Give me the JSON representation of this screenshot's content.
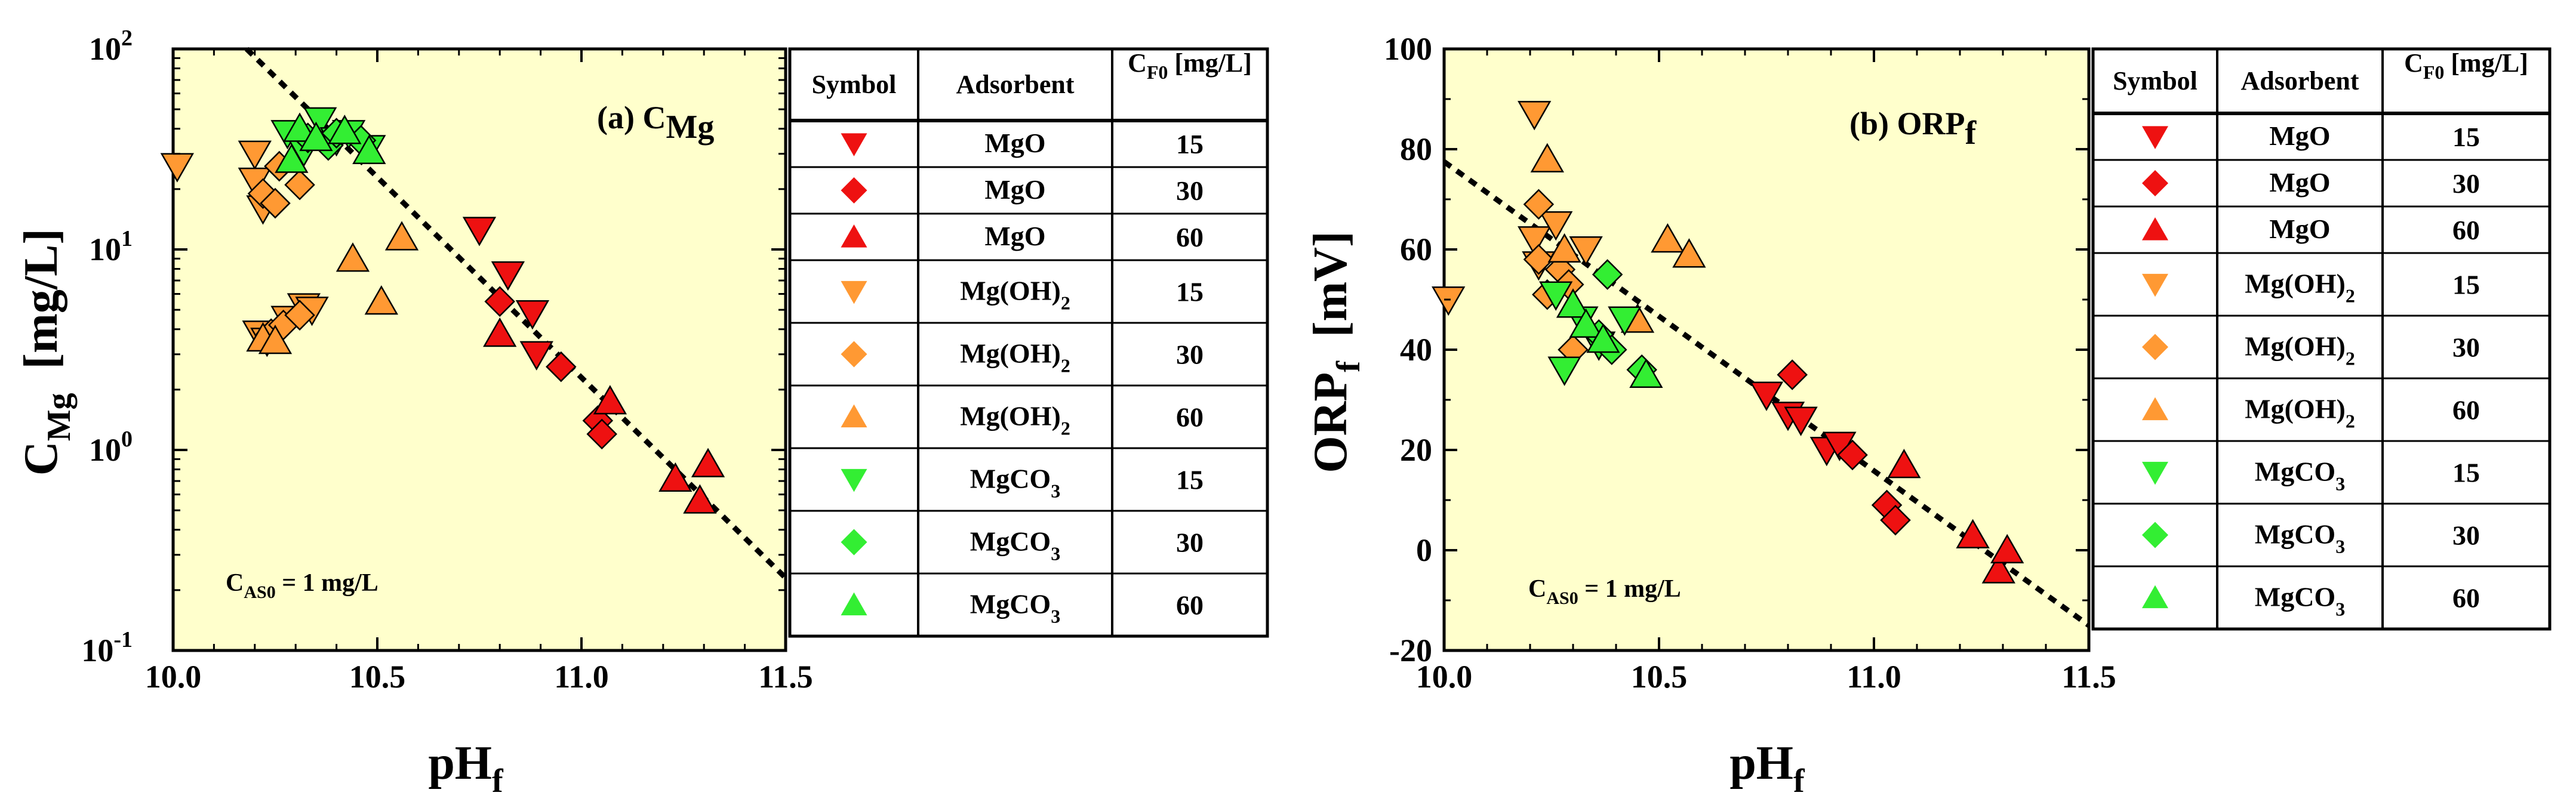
{
  "colors": {
    "plot_bg": "#ffffcc",
    "MgO": "#ee1111",
    "Mg(OH)2": "#ff9933",
    "MgCO3": "#33ee33",
    "outline": "#000000"
  },
  "legend": {
    "headers": {
      "symbol": "Symbol",
      "adsorbent": "Adsorbent",
      "cf0_main": "C",
      "cf0_sub": "F0",
      "cf0_unit": " [mg/L]"
    },
    "rows": [
      {
        "marker": "down",
        "color_key": "MgO",
        "ads_main": "MgO",
        "ads_sub": "",
        "cf0": "15"
      },
      {
        "marker": "diamond",
        "color_key": "MgO",
        "ads_main": "MgO",
        "ads_sub": "",
        "cf0": "30"
      },
      {
        "marker": "up",
        "color_key": "MgO",
        "ads_main": "MgO",
        "ads_sub": "",
        "cf0": "60"
      },
      {
        "marker": "down",
        "color_key": "Mg(OH)2",
        "ads_main": "Mg(OH)",
        "ads_sub": "2",
        "cf0": "15"
      },
      {
        "marker": "diamond",
        "color_key": "Mg(OH)2",
        "ads_main": "Mg(OH)",
        "ads_sub": "2",
        "cf0": "30"
      },
      {
        "marker": "up",
        "color_key": "Mg(OH)2",
        "ads_main": "Mg(OH)",
        "ads_sub": "2",
        "cf0": "60"
      },
      {
        "marker": "down",
        "color_key": "MgCO3",
        "ads_main": "MgCO",
        "ads_sub": "3",
        "cf0": "15"
      },
      {
        "marker": "diamond",
        "color_key": "MgCO3",
        "ads_main": "MgCO",
        "ads_sub": "3",
        "cf0": "30"
      },
      {
        "marker": "up",
        "color_key": "MgCO3",
        "ads_main": "MgCO",
        "ads_sub": "3",
        "cf0": "60"
      }
    ]
  },
  "chart_data": [
    {
      "type": "scatter",
      "panel_label": "(a) C",
      "panel_label_sub": "Mg",
      "xlabel": "pH",
      "xlabel_sub": "f",
      "ylabel": "C",
      "ylabel_sub": "Mg",
      "ylabel_unit": "[mg/L]",
      "yscale": "log",
      "xlim": [
        10.0,
        11.5
      ],
      "ylim": [
        0.1,
        100
      ],
      "x_ticks": [
        "10.0",
        "10.5",
        "11.0",
        "11.5"
      ],
      "y_ticks": [
        {
          "base": "10",
          "exp": "-1"
        },
        {
          "base": "10",
          "exp": "0"
        },
        {
          "base": "10",
          "exp": "1"
        },
        {
          "base": "10",
          "exp": "2"
        }
      ],
      "note": "C",
      "note_sub": "AS0",
      "note_rest": " = 1 mg/L",
      "trend_line": {
        "x": [
          10.18,
          11.5
        ],
        "y": [
          100,
          0.23
        ]
      },
      "series": [
        {
          "adsorbent": "MgO",
          "cf0": 15,
          "marker": "down",
          "points": [
            [
              10.75,
              12.5
            ],
            [
              10.82,
              7.5
            ],
            [
              10.88,
              4.8
            ],
            [
              10.89,
              3.0
            ]
          ]
        },
        {
          "adsorbent": "MgO",
          "cf0": 30,
          "marker": "diamond",
          "points": [
            [
              10.8,
              5.5
            ],
            [
              10.95,
              2.6
            ],
            [
              11.04,
              1.4
            ],
            [
              11.05,
              1.2
            ]
          ]
        },
        {
          "adsorbent": "MgO",
          "cf0": 60,
          "marker": "up",
          "points": [
            [
              10.8,
              3.8
            ],
            [
              11.07,
              1.75
            ],
            [
              11.23,
              0.72
            ],
            [
              11.29,
              0.56
            ],
            [
              11.31,
              0.85
            ]
          ]
        },
        {
          "adsorbent": "Mg(OH)2",
          "cf0": 15,
          "marker": "down",
          "points": [
            [
              10.01,
              26
            ],
            [
              10.2,
              30
            ],
            [
              10.2,
              22
            ],
            [
              10.22,
              16
            ],
            [
              10.21,
              3.8
            ],
            [
              10.23,
              3.5
            ],
            [
              10.28,
              4.5
            ],
            [
              10.32,
              5.2
            ],
            [
              10.34,
              5.0
            ]
          ]
        },
        {
          "adsorbent": "Mg(OH)2",
          "cf0": 30,
          "marker": "diamond",
          "points": [
            [
              10.22,
              19
            ],
            [
              10.25,
              17
            ],
            [
              10.26,
              26
            ],
            [
              10.31,
              21
            ],
            [
              10.24,
              3.8
            ],
            [
              10.27,
              4.2
            ],
            [
              10.31,
              4.7
            ]
          ]
        },
        {
          "adsorbent": "Mg(OH)2",
          "cf0": 60,
          "marker": "up",
          "points": [
            [
              10.22,
              3.6
            ],
            [
              10.25,
              3.5
            ],
            [
              10.44,
              9.0
            ],
            [
              10.51,
              5.5
            ],
            [
              10.56,
              11.5
            ]
          ]
        },
        {
          "adsorbent": "MgCO3",
          "cf0": 15,
          "marker": "down",
          "points": [
            [
              10.28,
              38
            ],
            [
              10.32,
              31
            ],
            [
              10.36,
              44
            ],
            [
              10.4,
              35
            ],
            [
              10.43,
              38
            ],
            [
              10.48,
              32
            ]
          ]
        },
        {
          "adsorbent": "MgCO3",
          "cf0": 30,
          "marker": "diamond",
          "points": [
            [
              10.33,
              36
            ],
            [
              10.38,
              33
            ],
            [
              10.4,
              38
            ],
            [
              10.46,
              35
            ]
          ]
        },
        {
          "adsorbent": "MgCO3",
          "cf0": 60,
          "marker": "up",
          "points": [
            [
              10.29,
              28
            ],
            [
              10.31,
              40
            ],
            [
              10.35,
              36
            ],
            [
              10.42,
              39
            ],
            [
              10.48,
              31
            ]
          ]
        }
      ]
    },
    {
      "type": "scatter",
      "panel_label": "(b) ORP",
      "panel_label_sub": "f",
      "xlabel": "pH",
      "xlabel_sub": "f",
      "ylabel": "ORP",
      "ylabel_sub": "f",
      "ylabel_unit": "[mV]",
      "yscale": "linear",
      "xlim": [
        10.0,
        11.5
      ],
      "ylim": [
        -20,
        100
      ],
      "x_ticks": [
        "10.0",
        "10.5",
        "11.0",
        "11.5"
      ],
      "y_ticks": [
        "-20",
        "0",
        "20",
        "40",
        "60",
        "80",
        "100"
      ],
      "note": "C",
      "note_sub": "AS0",
      "note_rest": " = 1 mg/L",
      "trend_line": {
        "x": [
          10.0,
          11.5
        ],
        "y": [
          77.5,
          -15
        ]
      },
      "series": [
        {
          "adsorbent": "MgO",
          "cf0": 15,
          "marker": "down",
          "points": [
            [
              10.75,
              31
            ],
            [
              10.8,
              27
            ],
            [
              10.83,
              26
            ],
            [
              10.89,
              20
            ],
            [
              10.92,
              21
            ]
          ]
        },
        {
          "adsorbent": "MgO",
          "cf0": 30,
          "marker": "diamond",
          "points": [
            [
              10.81,
              35
            ],
            [
              10.95,
              19
            ],
            [
              11.03,
              9
            ],
            [
              11.05,
              6
            ]
          ]
        },
        {
          "adsorbent": "MgO",
          "cf0": 60,
          "marker": "up",
          "points": [
            [
              11.07,
              17
            ],
            [
              11.23,
              3
            ],
            [
              11.29,
              -4
            ],
            [
              11.31,
              0
            ]
          ]
        },
        {
          "adsorbent": "Mg(OH)2",
          "cf0": 15,
          "marker": "down",
          "points": [
            [
              10.01,
              50
            ],
            [
              10.21,
              87
            ],
            [
              10.21,
              62
            ],
            [
              10.22,
              57
            ],
            [
              10.26,
              65
            ],
            [
              10.33,
              60
            ]
          ]
        },
        {
          "adsorbent": "Mg(OH)2",
          "cf0": 30,
          "marker": "diamond",
          "points": [
            [
              10.22,
              69
            ],
            [
              10.22,
              58
            ],
            [
              10.24,
              51
            ],
            [
              10.27,
              56
            ],
            [
              10.29,
              53
            ],
            [
              10.3,
              40
            ]
          ]
        },
        {
          "adsorbent": "Mg(OH)2",
          "cf0": 60,
          "marker": "up",
          "points": [
            [
              10.24,
              78
            ],
            [
              10.28,
              60
            ],
            [
              10.45,
              46
            ],
            [
              10.52,
              62
            ],
            [
              10.57,
              59
            ]
          ]
        },
        {
          "adsorbent": "MgCO3",
          "cf0": 15,
          "marker": "down",
          "points": [
            [
              10.26,
              51
            ],
            [
              10.28,
              36
            ],
            [
              10.32,
              46
            ],
            [
              10.36,
              41
            ],
            [
              10.42,
              46
            ]
          ]
        },
        {
          "adsorbent": "MgCO3",
          "cf0": 30,
          "marker": "diamond",
          "points": [
            [
              10.38,
              55
            ],
            [
              10.36,
              43
            ],
            [
              10.39,
              40
            ],
            [
              10.46,
              36
            ]
          ]
        },
        {
          "adsorbent": "MgCO3",
          "cf0": 60,
          "marker": "up",
          "points": [
            [
              10.3,
              49
            ],
            [
              10.33,
              45
            ],
            [
              10.37,
              42
            ],
            [
              10.47,
              35
            ]
          ]
        }
      ]
    }
  ]
}
